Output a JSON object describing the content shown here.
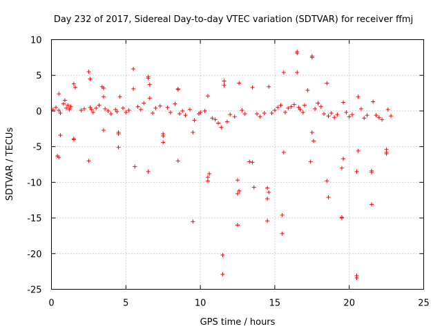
{
  "chart_data": {
    "type": "scatter",
    "title": "Day 232 of 2017, Sidereal Day-to-day VTEC variation (SDTVAR) for receiver ffmj",
    "xlabel": "GPS time / hours",
    "ylabel": "SDTVAR / TECUs",
    "xlim": [
      0,
      25
    ],
    "ylim": [
      -25,
      10
    ],
    "x_ticks": [
      "0",
      "5",
      "10",
      "15",
      "20",
      "25"
    ],
    "y_ticks": [
      "10",
      "5",
      "0",
      "-5",
      "-10",
      "-15",
      "-20",
      "-25"
    ],
    "grid": true,
    "marker": "plus",
    "color": "#ff0000",
    "series": [
      {
        "name": "SDTVAR",
        "x": [
          0.1,
          0.3,
          0.5,
          0.6,
          0.8,
          0.9,
          1.0,
          1.1,
          1.2,
          1.3,
          0.4,
          0.5,
          0.6,
          1.5,
          1.5,
          1.6,
          2.0,
          2.2,
          2.5,
          2.5,
          2.6,
          2.6,
          2.7,
          2.8,
          3.0,
          3.2,
          3.4,
          3.5,
          3.5,
          3.6,
          3.8,
          4.0,
          4.3,
          4.4,
          4.5,
          4.5,
          4.6,
          4.8,
          5.0,
          5.2,
          5.5,
          5.5,
          5.6,
          5.8,
          6.0,
          6.2,
          6.5,
          6.5,
          6.6,
          6.6,
          6.8,
          7.0,
          7.3,
          7.5,
          7.5,
          7.8,
          8.0,
          8.3,
          8.5,
          8.5,
          8.6,
          8.8,
          9.0,
          9.3,
          9.5,
          9.5,
          9.6,
          9.9,
          10.0,
          10.3,
          10.5,
          10.5,
          10.6,
          10.8,
          11.0,
          11.2,
          11.4,
          11.5,
          11.5,
          11.6,
          11.6,
          11.8,
          12.0,
          12.3,
          12.5,
          12.5,
          12.6,
          12.6,
          12.8,
          13.0,
          13.3,
          13.5,
          13.6,
          13.8,
          14.0,
          14.3,
          14.5,
          14.5,
          14.5,
          14.6,
          14.6,
          14.8,
          15.0,
          15.2,
          15.4,
          15.5,
          15.5,
          15.6,
          15.6,
          15.7,
          15.9,
          16.1,
          16.3,
          16.5,
          16.5,
          16.6,
          16.7,
          16.9,
          17.0,
          17.2,
          17.4,
          17.5,
          17.5,
          17.6,
          17.7,
          17.9,
          18.1,
          18.3,
          18.5,
          18.5,
          18.6,
          18.6,
          18.8,
          19.0,
          19.2,
          19.5,
          19.5,
          19.6,
          19.6,
          19.8,
          20.0,
          20.2,
          20.5,
          20.5,
          20.6,
          20.6,
          20.8,
          21.0,
          21.2,
          21.5,
          21.5,
          21.6,
          21.8,
          22.0,
          22.2,
          22.5,
          22.5,
          22.6,
          22.8,
          0.5,
          1.5,
          3.5,
          4.5,
          6.5,
          7.5,
          8.5,
          10.5,
          12.5,
          13.5,
          16.5,
          17.5,
          19.5,
          20.5,
          21.5,
          22.5
        ],
        "y": [
          0.2,
          0.5,
          0.1,
          -0.3,
          1.0,
          1.5,
          0.4,
          0.8,
          0.2,
          0.6,
          -6.3,
          2.4,
          -3.4,
          3.8,
          -4.0,
          3.3,
          0.1,
          0.3,
          5.5,
          -7.0,
          4.5,
          0.5,
          0.2,
          -0.2,
          0.4,
          0.8,
          3.4,
          -2.7,
          2.0,
          0.3,
          0.0,
          -0.4,
          0.2,
          -0.1,
          -3.2,
          -5.1,
          2.0,
          0.4,
          -0.2,
          0.1,
          5.9,
          3.1,
          -7.8,
          0.6,
          0.2,
          1.1,
          4.8,
          -8.5,
          3.7,
          1.8,
          -0.3,
          0.4,
          0.7,
          -3.2,
          -4.4,
          0.5,
          -0.2,
          1.0,
          3.1,
          -7.0,
          -0.4,
          0.0,
          -0.6,
          0.2,
          -15.5,
          -3.0,
          -1.3,
          -0.4,
          -0.2,
          0.0,
          -9.3,
          2.1,
          -8.8,
          -1.0,
          -1.2,
          -1.7,
          -2.3,
          -22.9,
          -20.2,
          4.2,
          3.6,
          -1.5,
          -0.5,
          -0.8,
          -16.0,
          -9.7,
          3.9,
          -11.2,
          0.1,
          -0.4,
          -7.1,
          3.3,
          -10.7,
          -0.4,
          -0.8,
          -0.3,
          -15.4,
          -12.3,
          -10.8,
          -11.4,
          3.4,
          -0.3,
          0.1,
          0.5,
          0.8,
          -17.2,
          -14.6,
          5.4,
          -5.8,
          -0.2,
          0.4,
          0.6,
          0.9,
          8.3,
          5.4,
          0.5,
          0.2,
          -0.2,
          0.8,
          2.9,
          -7.1,
          7.7,
          -3.0,
          -4.2,
          0.3,
          1.1,
          0.6,
          -0.4,
          3.9,
          -9.8,
          -12.1,
          -0.7,
          -0.3,
          -0.9,
          -0.5,
          -14.9,
          -8.0,
          1.2,
          -6.7,
          -0.2,
          -0.8,
          -0.5,
          -23.4,
          -8.5,
          2.0,
          -5.6,
          0.3,
          -1.0,
          -0.6,
          -13.1,
          -8.6,
          1.3,
          -0.6,
          -0.9,
          -1.2,
          -5.4,
          -6.0,
          0.2,
          -0.7,
          -6.5,
          -3.9,
          3.2,
          -3.0,
          4.6,
          -3.5,
          3.0,
          -9.8,
          -11.6,
          -7.2,
          8.1,
          7.5,
          -15.0,
          -23.1,
          -8.4,
          -5.8
        ]
      }
    ]
  }
}
